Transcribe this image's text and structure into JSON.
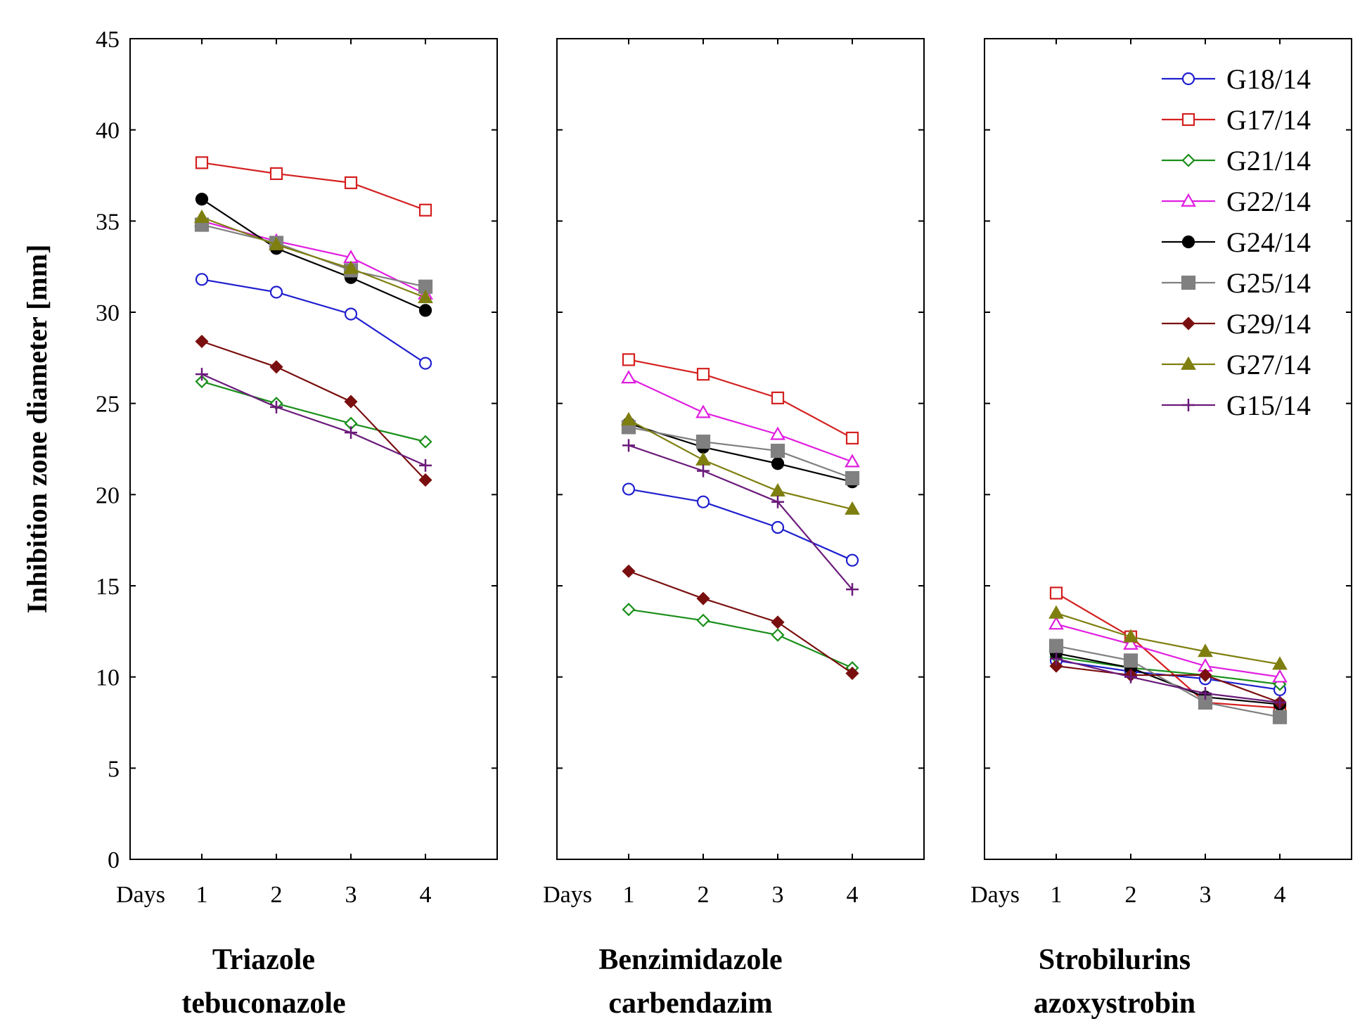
{
  "chart_data": {
    "type": "line",
    "ylabel": "Inhibition zone diameter [mm]",
    "ylim": [
      0,
      45
    ],
    "yticks": [
      "0",
      "5",
      "10",
      "15",
      "20",
      "25",
      "30",
      "35",
      "40",
      "45"
    ],
    "x_axis_label": "Days",
    "categories": [
      "1",
      "2",
      "3",
      "4"
    ],
    "legend": {
      "position": "top-right of third panel"
    },
    "panels": [
      {
        "title_line1": "Triazole",
        "title_line2": "tebuconazole",
        "series": [
          {
            "name": "G18/14",
            "values": [
              31.8,
              31.1,
              29.9,
              27.2
            ]
          },
          {
            "name": "G17/14",
            "values": [
              38.2,
              37.6,
              37.1,
              35.6
            ]
          },
          {
            "name": "G21/14",
            "values": [
              26.2,
              25.0,
              23.9,
              22.9
            ]
          },
          {
            "name": "G22/14",
            "values": [
              35.0,
              33.9,
              33.0,
              31.0
            ]
          },
          {
            "name": "G24/14",
            "values": [
              36.2,
              33.5,
              31.9,
              30.1
            ]
          },
          {
            "name": "G25/14",
            "values": [
              34.8,
              33.8,
              32.3,
              31.4
            ]
          },
          {
            "name": "G29/14",
            "values": [
              28.4,
              27.0,
              25.1,
              20.8
            ]
          },
          {
            "name": "G27/14",
            "values": [
              35.2,
              33.7,
              32.4,
              30.8
            ]
          },
          {
            "name": "G15/14",
            "values": [
              26.6,
              24.8,
              23.4,
              21.6
            ]
          }
        ]
      },
      {
        "title_line1": "Benzimidazole",
        "title_line2": "carbendazim",
        "series": [
          {
            "name": "G18/14",
            "values": [
              20.3,
              19.6,
              18.2,
              16.4
            ]
          },
          {
            "name": "G17/14",
            "values": [
              27.4,
              26.6,
              25.3,
              23.1
            ]
          },
          {
            "name": "G21/14",
            "values": [
              13.7,
              13.1,
              12.3,
              10.5
            ]
          },
          {
            "name": "G22/14",
            "values": [
              26.4,
              24.5,
              23.3,
              21.8
            ]
          },
          {
            "name": "G24/14",
            "values": [
              23.9,
              22.6,
              21.7,
              20.7
            ]
          },
          {
            "name": "G25/14",
            "values": [
              23.7,
              22.9,
              22.4,
              20.9
            ]
          },
          {
            "name": "G29/14",
            "values": [
              15.8,
              14.3,
              13.0,
              10.2
            ]
          },
          {
            "name": "G27/14",
            "values": [
              24.1,
              21.9,
              20.2,
              19.2
            ]
          },
          {
            "name": "G15/14",
            "values": [
              22.7,
              21.3,
              19.6,
              14.8
            ]
          }
        ]
      },
      {
        "title_line1": "Strobilurins",
        "title_line2": "azoxystrobin",
        "series": [
          {
            "name": "G18/14",
            "values": [
              10.9,
              10.3,
              9.9,
              9.3
            ]
          },
          {
            "name": "G17/14",
            "values": [
              14.6,
              12.2,
              8.6,
              8.3
            ]
          },
          {
            "name": "G21/14",
            "values": [
              11.1,
              10.5,
              10.1,
              9.6
            ]
          },
          {
            "name": "G22/14",
            "values": [
              12.9,
              11.8,
              10.6,
              10.0
            ]
          },
          {
            "name": "G24/14",
            "values": [
              11.3,
              10.5,
              8.9,
              8.5
            ]
          },
          {
            "name": "G25/14",
            "values": [
              11.7,
              10.9,
              8.6,
              7.8
            ]
          },
          {
            "name": "G29/14",
            "values": [
              10.6,
              10.1,
              10.1,
              8.6
            ]
          },
          {
            "name": "G27/14",
            "values": [
              13.5,
              12.2,
              11.4,
              10.7
            ]
          },
          {
            "name": "G15/14",
            "values": [
              11.0,
              10.0,
              9.1,
              8.6
            ]
          }
        ]
      }
    ],
    "series_style": [
      {
        "name": "G18/14",
        "color": "#1f1fcf",
        "marker": "open-circle"
      },
      {
        "name": "G17/14",
        "color": "#d42020",
        "marker": "open-square"
      },
      {
        "name": "G21/14",
        "color": "#1a8f1a",
        "marker": "open-diamond"
      },
      {
        "name": "G22/14",
        "color": "#e01ee0",
        "marker": "open-triangle"
      },
      {
        "name": "G24/14",
        "color": "#000000",
        "marker": "filled-circle"
      },
      {
        "name": "G25/14",
        "color": "#808080",
        "marker": "filled-square"
      },
      {
        "name": "G29/14",
        "color": "#7a0f0f",
        "marker": "filled-diamond"
      },
      {
        "name": "G27/14",
        "color": "#7f7f10",
        "marker": "filled-triangle"
      },
      {
        "name": "G15/14",
        "color": "#6a1a7a",
        "marker": "plus"
      }
    ]
  }
}
